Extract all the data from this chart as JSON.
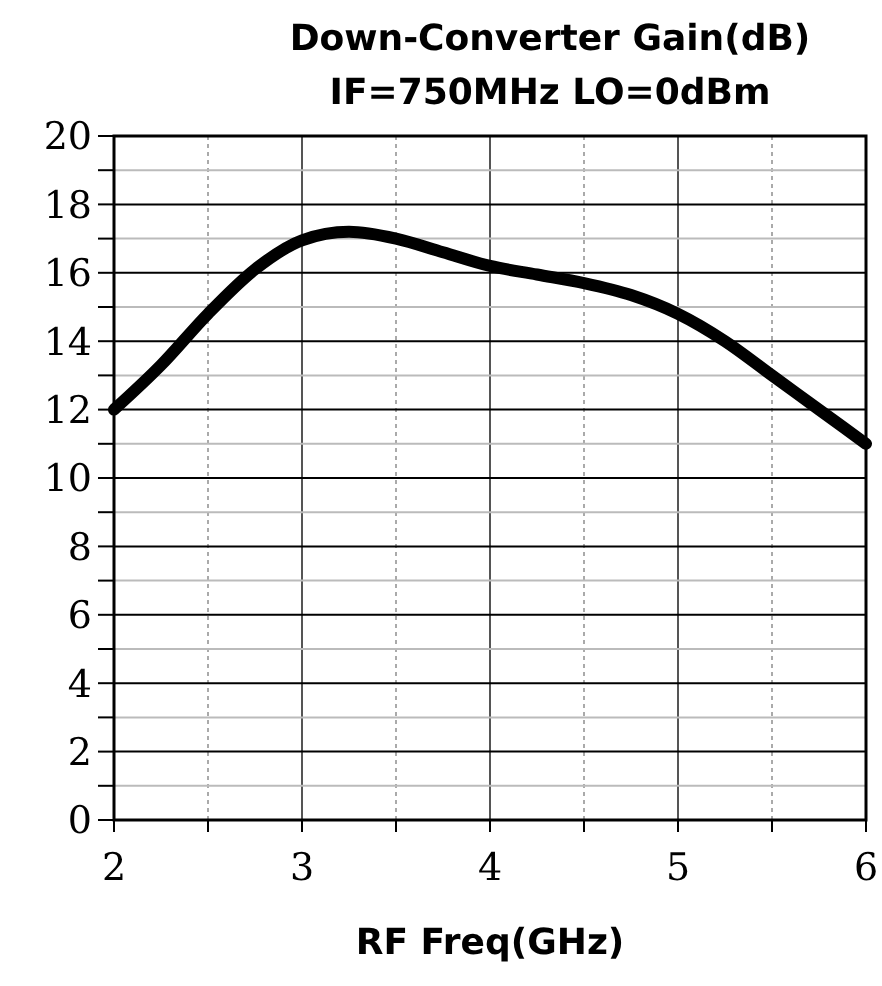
{
  "chart_data": {
    "type": "line",
    "title": "Down-Converter Gain(dB)",
    "subtitle": "IF=750MHz LO=0dBm",
    "xlabel": "RF Freq(GHz)",
    "x": [
      2,
      2.25,
      2.5,
      2.75,
      3,
      3.25,
      3.5,
      3.75,
      4,
      4.25,
      4.5,
      4.75,
      5,
      5.25,
      5.5,
      5.75,
      6
    ],
    "series": [
      {
        "color": "#000000",
        "values": [
          12,
          13.3,
          14.8,
          16.1,
          16.95,
          17.2,
          17.0,
          16.6,
          16.2,
          15.95,
          15.7,
          15.35,
          14.8,
          14.0,
          13.0,
          12.0,
          11.0
        ]
      }
    ],
    "xlim": [
      2,
      6
    ],
    "xticks": [
      2,
      {
        "value": 2.5,
        "label": null
      },
      3,
      {
        "value": 3.5,
        "label": null
      },
      4,
      {
        "value": 4.5,
        "label": null
      },
      5,
      {
        "value": 5.5,
        "label": null
      },
      6
    ],
    "ylim": [
      0,
      20
    ],
    "yticks": [
      0,
      {
        "value": 1,
        "label": null
      },
      2,
      {
        "value": 3,
        "label": null
      },
      4,
      {
        "value": 5,
        "label": null
      },
      6,
      {
        "value": 7,
        "label": null
      },
      8,
      {
        "value": 9,
        "label": null
      },
      10,
      {
        "value": 11,
        "label": null
      },
      12,
      {
        "value": 13,
        "label": null
      },
      14,
      {
        "value": 15,
        "label": null
      },
      16,
      {
        "value": 17,
        "label": null
      },
      18,
      {
        "value": 19,
        "label": null
      },
      20
    ],
    "grid": true,
    "marker": "none",
    "line_style": "solid"
  }
}
